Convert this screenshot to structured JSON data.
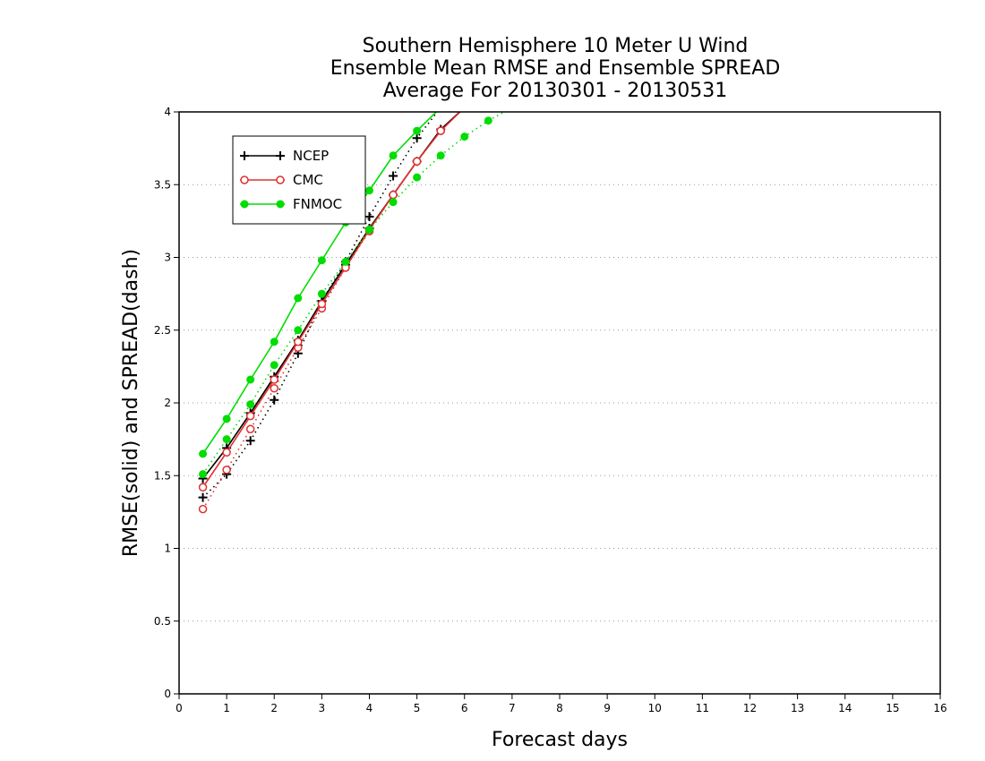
{
  "chart_data": {
    "type": "line",
    "title_lines": [
      "Southern Hemisphere 10 Meter U Wind",
      "Ensemble Mean RMSE and Ensemble SPREAD",
      "Average For 20130301 - 20130531"
    ],
    "xlabel": "Forecast days",
    "ylabel": "RMSE(solid) and SPREAD(dash)",
    "xlim": [
      0,
      16
    ],
    "ylim": [
      0,
      4
    ],
    "xticks": [
      "0",
      "1",
      "2",
      "3",
      "4",
      "5",
      "6",
      "7",
      "8",
      "9",
      "10",
      "11",
      "12",
      "13",
      "14",
      "15",
      "16"
    ],
    "yticks": [
      "0",
      "0.5",
      "1",
      "1.5",
      "2",
      "2.5",
      "3",
      "3.5",
      "4"
    ],
    "grid": "horizontal dotted",
    "legend_position": "top-left",
    "series": [
      {
        "name": "NCEP",
        "color": "#000000",
        "marker": "plus",
        "rmse": {
          "x": [
            0.5,
            1,
            1.5,
            2,
            2.5,
            3,
            3.5,
            4,
            4.5,
            5,
            5.5,
            6
          ],
          "y": [
            1.48,
            1.69,
            1.93,
            2.18,
            2.43,
            2.7,
            2.95,
            3.2,
            3.43,
            3.66,
            3.88,
            4.03
          ]
        },
        "spread": {
          "x": [
            0.5,
            1,
            1.5,
            2,
            2.5,
            3,
            3.5,
            4,
            4.5,
            5,
            5.5
          ],
          "y": [
            1.35,
            1.51,
            1.74,
            2.02,
            2.34,
            2.7,
            2.97,
            3.28,
            3.56,
            3.82,
            4.03
          ]
        }
      },
      {
        "name": "CMC",
        "color": "#e03030",
        "marker": "circle-open",
        "rmse": {
          "x": [
            0.5,
            1,
            1.5,
            2,
            2.5,
            3,
            3.5,
            4,
            4.5,
            5,
            5.5,
            6
          ],
          "y": [
            1.42,
            1.66,
            1.91,
            2.16,
            2.42,
            2.68,
            2.93,
            3.19,
            3.43,
            3.66,
            3.87,
            4.03
          ]
        },
        "spread": {
          "x": [
            0.5,
            1,
            1.5,
            2,
            2.5,
            3,
            3.5,
            4,
            4.5,
            5,
            5.5
          ],
          "y": [
            1.27,
            1.54,
            1.82,
            2.1,
            2.38,
            2.65,
            2.93,
            3.18,
            3.43,
            3.66,
            3.87
          ]
        }
      },
      {
        "name": "FNMOC",
        "color": "#00dd00",
        "marker": "circle-filled",
        "rmse": {
          "x": [
            0.5,
            1,
            1.5,
            2,
            2.5,
            3,
            3.5,
            4,
            4.5,
            5,
            5.5
          ],
          "y": [
            1.65,
            1.89,
            2.16,
            2.42,
            2.72,
            2.98,
            3.24,
            3.46,
            3.7,
            3.87,
            4.03
          ]
        },
        "spread": {
          "x": [
            0.5,
            1,
            1.5,
            2,
            2.5,
            3,
            3.5,
            4,
            4.5,
            5,
            5.5,
            6,
            6.5,
            7
          ],
          "y": [
            1.51,
            1.75,
            1.99,
            2.26,
            2.5,
            2.75,
            2.97,
            3.19,
            3.38,
            3.55,
            3.7,
            3.83,
            3.94,
            4.03
          ]
        }
      }
    ]
  }
}
